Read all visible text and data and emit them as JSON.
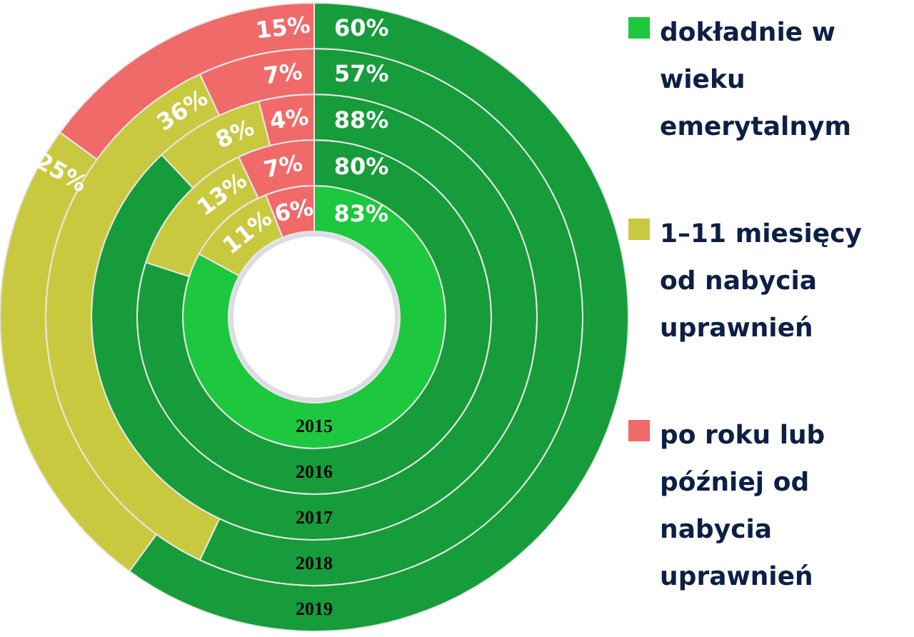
{
  "chart_data": {
    "type": "donut",
    "categories": [
      "dokładnie w wieku emerytalnym",
      "1–11 miesięcy od nabycia uprawnień",
      "po roku lub później od nabycia uprawnień"
    ],
    "colors": [
      "#1dc83e",
      "#c9c93f",
      "#f06a6a"
    ],
    "series": [
      {
        "name": "2015",
        "values": [
          83,
          11,
          6
        ],
        "colors": [
          "#1dc83e",
          "#c9c93f",
          "#f06a6a"
        ],
        "value_labels": [
          "83%",
          "11%",
          "6%"
        ]
      },
      {
        "name": "2016",
        "values": [
          80,
          13,
          7
        ],
        "colors": [
          "#169c3a",
          "#c9c93f",
          "#f06a6a"
        ],
        "value_labels": [
          "80%",
          "13%",
          "7%"
        ]
      },
      {
        "name": "2017",
        "values": [
          88,
          8,
          4
        ],
        "colors": [
          "#169c3a",
          "#c9c93f",
          "#f06a6a"
        ],
        "value_labels": [
          "88%",
          "8%",
          "4%"
        ]
      },
      {
        "name": "2018",
        "values": [
          57,
          36,
          7
        ],
        "colors": [
          "#169c3a",
          "#c9c93f",
          "#f06a6a"
        ],
        "value_labels": [
          "57%",
          "36%",
          "7%"
        ]
      },
      {
        "name": "2019",
        "values": [
          60,
          25,
          15
        ],
        "colors": [
          "#169c3a",
          "#c9c93f",
          "#f06a6a"
        ],
        "value_labels": [
          "60%",
          "25%",
          "15%"
        ]
      }
    ],
    "legend": "right"
  }
}
